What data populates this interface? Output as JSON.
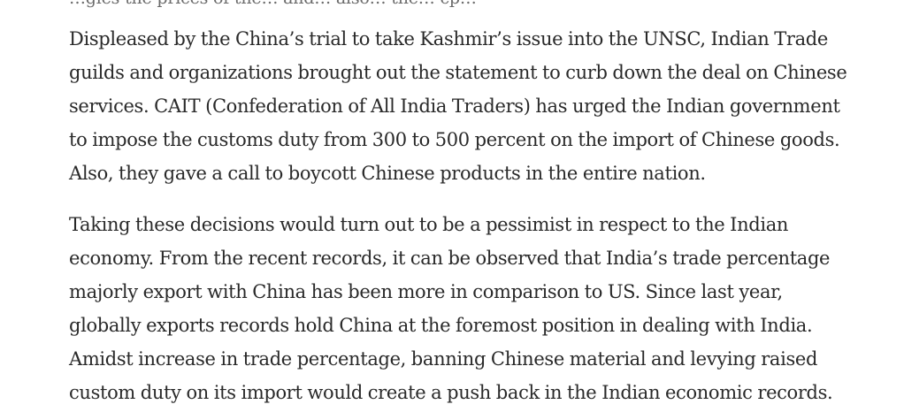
{
  "article": {
    "cut_line": "…gles the prices of the… and… also… the… cp…",
    "paragraphs": [
      {
        "lines": [
          "Displeased by the China’s trial to take Kashmir’s issue into the UNSC, Indian Trade",
          "guilds and organizations brought out the statement to curb down the deal on Chinese",
          "services. CAIT (Confederation of All India Traders) has urged the Indian government",
          "to impose the customs duty from 300 to 500 percent on the import of Chinese goods.",
          "Also, they gave a call to boycott Chinese products in the entire nation."
        ]
      },
      {
        "lines": [
          "Taking these decisions would turn out to be a pessimist in respect to the Indian",
          "economy. From the recent records, it can be observed that India’s trade percentage",
          "majorly export with China has been more in comparison to US. Since last year,",
          "globally exports records hold China at the foremost position in dealing with India.",
          "Amidst increase in trade percentage, banning Chinese material and levying raised",
          "custom duty on its import would create a push back in the Indian economic records."
        ]
      }
    ]
  }
}
